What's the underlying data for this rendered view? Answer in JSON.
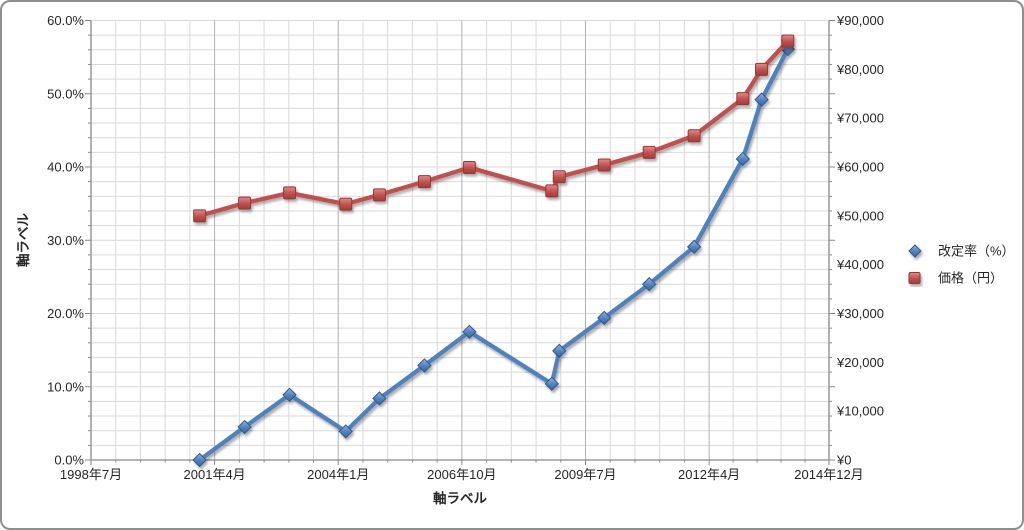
{
  "chart_data": {
    "type": "line",
    "title": "",
    "xlabel": "軸ラベル",
    "ylabel_left": "軸ラベル",
    "x_unit": "months since 1998-07",
    "x_range": [
      0,
      197
    ],
    "x_ticks": {
      "values": [
        0,
        33,
        66,
        99,
        132,
        165,
        197
      ],
      "labels": [
        "1998年7月",
        "2001年4月",
        "2004年1月",
        "2006年10月",
        "2009年7月",
        "2012年4月",
        "2014年12月"
      ]
    },
    "x_minor_divisions": 5,
    "grid": true,
    "legend_position": "right",
    "y_left": {
      "min": 0,
      "max": 60,
      "major_step": 10,
      "minor_step": 2,
      "tick_labels": [
        "0.0%",
        "10.0%",
        "20.0%",
        "30.0%",
        "40.0%",
        "50.0%",
        "60.0%"
      ]
    },
    "y_right": {
      "min": 0,
      "max": 90000,
      "major_step": 10000,
      "minor_step": 3000,
      "tick_labels": [
        "¥0",
        "¥10,000",
        "¥20,000",
        "¥30,000",
        "¥40,000",
        "¥50,000",
        "¥60,000",
        "¥70,000",
        "¥80,000",
        "¥90,000"
      ]
    },
    "series": [
      {
        "name": "改定率（%）",
        "axis": "left",
        "marker": "diamond",
        "color": "#4F81BD",
        "marker_light": "#8FB4E3",
        "marker_dark": "#31598C",
        "x_months": [
          29,
          41,
          53,
          68,
          77,
          89,
          101,
          123,
          125,
          137,
          149,
          161,
          174,
          179,
          186
        ],
        "values": [
          0.0,
          4.5,
          8.9,
          3.9,
          8.4,
          12.9,
          17.5,
          10.4,
          14.9,
          19.4,
          24.0,
          29.1,
          41.1,
          49.2,
          56.1
        ]
      },
      {
        "name": "価格（円）",
        "axis": "right",
        "marker": "square",
        "color": "#C0504D",
        "marker_light": "#E08B87",
        "marker_dark": "#953735",
        "x_months": [
          29,
          41,
          53,
          68,
          77,
          89,
          101,
          123,
          125,
          137,
          149,
          161,
          174,
          179,
          186
        ],
        "values": [
          50000,
          52600,
          54700,
          52400,
          54300,
          57000,
          59900,
          55100,
          58000,
          60400,
          63000,
          66400,
          74000,
          80000,
          85800
        ]
      }
    ],
    "colors": {
      "grid_minor": "#d9d9d9",
      "grid_major": "#b1b1b1",
      "axis_line": "#898989",
      "text": "#262626",
      "background": "#ffffff",
      "frame_border": "#8e8e8e"
    }
  }
}
